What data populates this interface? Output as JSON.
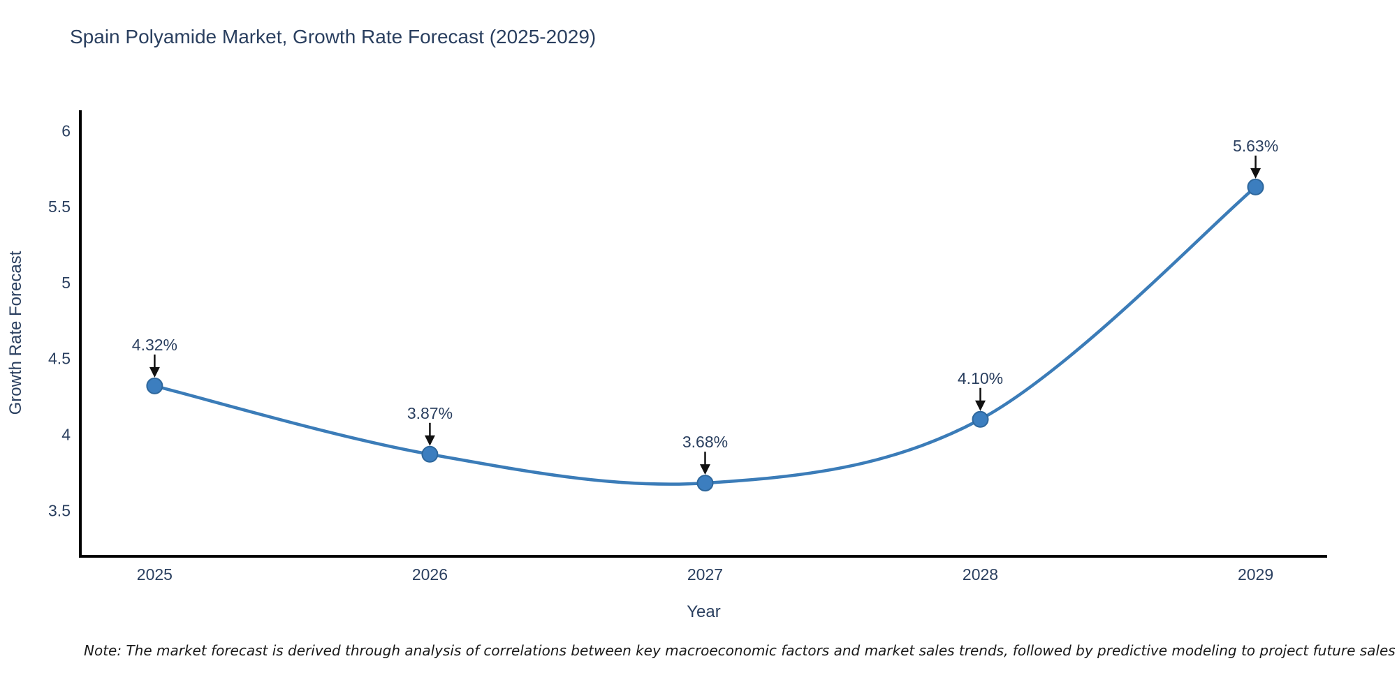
{
  "chart_data": {
    "type": "line",
    "title": "Spain Polyamide Market, Growth Rate Forecast (2025-2029)",
    "xlabel": "Year",
    "ylabel": "Growth Rate Forecast",
    "x": [
      2025,
      2026,
      2027,
      2028,
      2029
    ],
    "series": [
      {
        "name": "Growth Rate Forecast",
        "values": [
          4.32,
          3.87,
          3.68,
          4.1,
          5.63
        ],
        "point_labels": [
          "4.32%",
          "3.87%",
          "3.68%",
          "4.10%",
          "5.63%"
        ]
      }
    ],
    "x_tick_labels": [
      "2025",
      "2026",
      "2027",
      "2028",
      "2029"
    ],
    "y_ticks": [
      3.5,
      4,
      4.5,
      5,
      5.5,
      6
    ],
    "y_tick_labels": [
      "3.5",
      "4",
      "4.5",
      "5",
      "5.5",
      "6"
    ],
    "xlim": [
      2024.73,
      2029.26
    ],
    "ylim": [
      3.198,
      6.135
    ],
    "grid": false,
    "legend": "none",
    "line_shape": "spline",
    "annotations_arrows": true,
    "colors": {
      "line": "#3b7cb8",
      "marker_fill": "#3c7ebf",
      "marker_border": "#2e679c",
      "axis_line": "#000000",
      "tick_text": "#2a3f5f",
      "title_text": "#2a3f5f",
      "annotation_text": "#2a3f5f",
      "annotation_arrow": "#111111"
    }
  },
  "note": "Note: The market forecast is derived through analysis of correlations between key macroeconomic factors and market sales trends, followed by predictive modeling to project future sales"
}
